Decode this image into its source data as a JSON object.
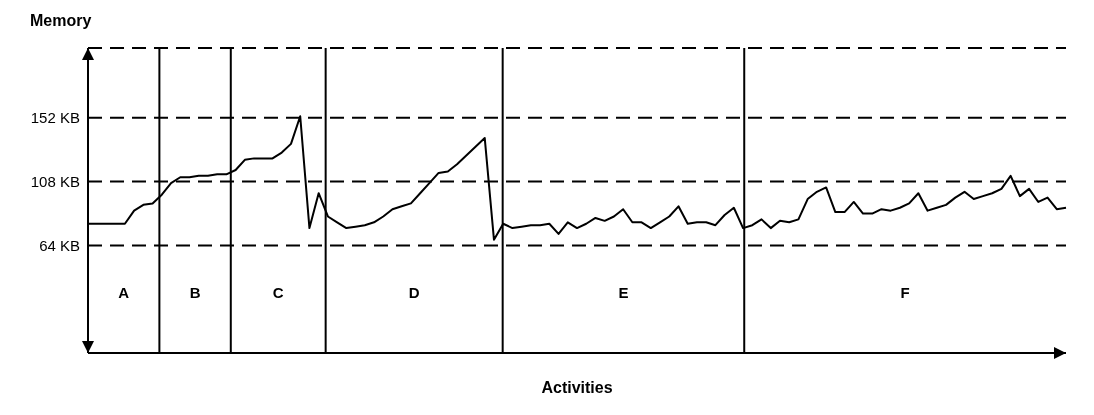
{
  "chart_data": {
    "type": "line",
    "ylabel": "Memory",
    "xlabel": "Activities",
    "categories": [
      null,
      null,
      null,
      null,
      null,
      null,
      null,
      null,
      null,
      null,
      null,
      null,
      null,
      null,
      null,
      null,
      null,
      null,
      null,
      null,
      null,
      null,
      null,
      null,
      null,
      null,
      null,
      null,
      null,
      null,
      null,
      null,
      null,
      null,
      null,
      null,
      null,
      null,
      null,
      null,
      null,
      null,
      null,
      null,
      null,
      null,
      null,
      null,
      null,
      null,
      null,
      null,
      null,
      null,
      null,
      null,
      null,
      null,
      null,
      null,
      null,
      null,
      null,
      null,
      null,
      null,
      null,
      null,
      null,
      null,
      null,
      null,
      null,
      null,
      null,
      null,
      null,
      null,
      null,
      null,
      null,
      null,
      null,
      null,
      null,
      null,
      null,
      null,
      null,
      null,
      null,
      null,
      null,
      null,
      null,
      null,
      null,
      null,
      null,
      null,
      null,
      null,
      null,
      null,
      null,
      null,
      null
    ],
    "series": [
      {
        "color": "#000000",
        "values": [
          79,
          79,
          79,
          79,
          79,
          88,
          92,
          93,
          99,
          107,
          111,
          111,
          112,
          112,
          113,
          113,
          116,
          123,
          124,
          124,
          124,
          128,
          134,
          153,
          76,
          100,
          84,
          80,
          76,
          77,
          78,
          80,
          84,
          89,
          91,
          93,
          100,
          107,
          114,
          115,
          120,
          126,
          132,
          138,
          68,
          79,
          76,
          77,
          78,
          78,
          79,
          72,
          80,
          76,
          79,
          83,
          81,
          84,
          89,
          80,
          80,
          76,
          80,
          84,
          91,
          79,
          80,
          80,
          78,
          85,
          90,
          76,
          78,
          82,
          76,
          81,
          80,
          82,
          96,
          101,
          104,
          87,
          87,
          94,
          86,
          86,
          89,
          88,
          90,
          93,
          100,
          88,
          90,
          92,
          97,
          101,
          96,
          98,
          100,
          103,
          112,
          98,
          103,
          94,
          97,
          89,
          90
        ]
      }
    ],
    "ylim": [
      -10,
      200
    ],
    "yticks": [
      {
        "value": 64,
        "label": "64 KB"
      },
      {
        "value": 108,
        "label": "108 KB"
      },
      {
        "value": 152,
        "label": "152 KB"
      }
    ],
    "grid": "y",
    "legend": false,
    "marker": "none",
    "line_style": "solid",
    "annotations": [
      "A",
      "B",
      "C",
      "D",
      "E",
      "F"
    ]
  }
}
